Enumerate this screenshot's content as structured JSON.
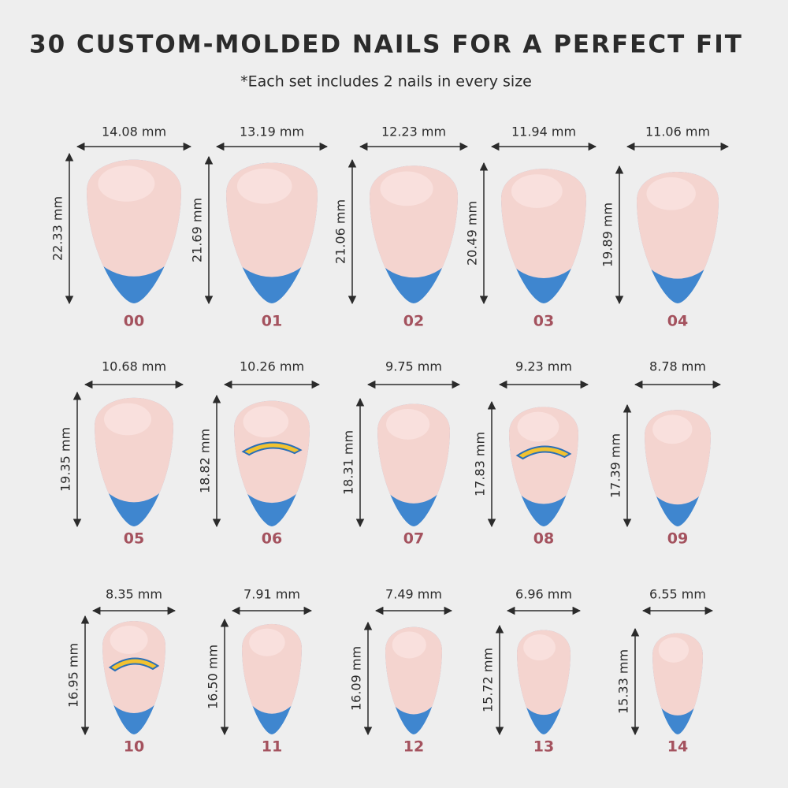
{
  "header": {
    "title": "30 CUSTOM-MOLDED NAILS FOR A PERFECT FIT",
    "subtitle": "*Each set includes 2 nails in every size"
  },
  "nails": [
    {
      "size": "00",
      "width": "14.08 mm",
      "length": "22.33 mm"
    },
    {
      "size": "01",
      "width": "13.19 mm",
      "length": "21.69 mm"
    },
    {
      "size": "02",
      "width": "12.23 mm",
      "length": "21.06 mm"
    },
    {
      "size": "03",
      "width": "11.94 mm",
      "length": "20.49 mm"
    },
    {
      "size": "04",
      "width": "11.06 mm",
      "length": "19.89 mm"
    },
    {
      "size": "05",
      "width": "10.68 mm",
      "length": "19.35 mm"
    },
    {
      "size": "06",
      "width": "10.26 mm",
      "length": "18.82 mm",
      "logo": true
    },
    {
      "size": "07",
      "width": "9.75 mm",
      "length": "18.31 mm"
    },
    {
      "size": "08",
      "width": "9.23 mm",
      "length": "17.83 mm",
      "logo": true
    },
    {
      "size": "09",
      "width": "8.78 mm",
      "length": "17.39 mm"
    },
    {
      "size": "10",
      "width": "8.35 mm",
      "length": "16.95 mm",
      "logo": true
    },
    {
      "size": "11",
      "width": "7.91 mm",
      "length": "16.50 mm"
    },
    {
      "size": "12",
      "width": "7.49 mm",
      "length": "16.09 mm"
    },
    {
      "size": "13",
      "width": "6.96 mm",
      "length": "15.72 mm"
    },
    {
      "size": "14",
      "width": "6.55 mm",
      "length": "15.33 mm"
    }
  ]
}
